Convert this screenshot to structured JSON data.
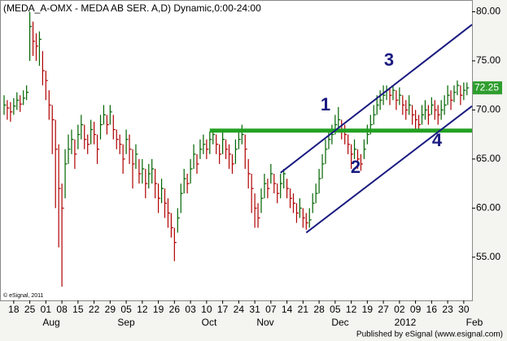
{
  "chart_data": {
    "type": "hlc",
    "title": "(MEDA_A-OMX - MEDA AB SER. A,D) Dynamic,0:00-24:00",
    "categories": [
      null,
      null,
      null,
      "18",
      null,
      null,
      null,
      null,
      "25",
      null,
      null,
      null,
      null,
      "01",
      null,
      null,
      null,
      null,
      "08",
      null,
      null,
      null,
      null,
      "15",
      null,
      null,
      null,
      null,
      "22",
      null,
      null,
      null,
      null,
      "29",
      null,
      null,
      null,
      null,
      "05",
      null,
      null,
      null,
      null,
      "12",
      null,
      null,
      null,
      null,
      "19",
      null,
      null,
      null,
      null,
      "26",
      null,
      null,
      null,
      null,
      "03",
      null,
      null,
      null,
      null,
      "10",
      null,
      null,
      null,
      null,
      "17",
      null,
      null,
      null,
      null,
      "24",
      null,
      null,
      null,
      null,
      "31",
      null,
      null,
      null,
      null,
      "07",
      null,
      null,
      null,
      null,
      "14",
      null,
      null,
      null,
      null,
      "21",
      null,
      null,
      null,
      null,
      "28",
      null,
      null,
      null,
      null,
      "05",
      null,
      null,
      null,
      null,
      "12",
      null,
      null,
      null,
      null,
      "19",
      null,
      null,
      null,
      null,
      "27",
      null,
      null,
      null,
      null,
      "02",
      null,
      null,
      null,
      null,
      "09",
      null,
      null,
      null,
      null,
      "16",
      null,
      null,
      null,
      null,
      "23",
      null,
      null,
      null,
      null,
      "30",
      null
    ],
    "months": [
      "Aug",
      "Sep",
      "Oct",
      "Nov",
      "Dec",
      "2012",
      "Feb"
    ],
    "high": [
      71.5,
      71.0,
      70.8,
      71.2,
      71.8,
      71.5,
      72.0,
      72.5,
      80.0,
      79.0,
      77.8,
      78.0,
      76.0,
      74.0,
      72.0,
      70.5,
      69.0,
      66.5,
      62.5,
      66.0,
      67.5,
      68.0,
      67.0,
      68.5,
      69.5,
      68.5,
      67.5,
      69.0,
      68.8,
      67.5,
      69.5,
      70.5,
      69.5,
      70.5,
      69.5,
      68.0,
      67.5,
      66.5,
      68.0,
      67.5,
      66.0,
      66.5,
      65.0,
      65.0,
      64.0,
      64.5,
      65.0,
      64.0,
      62.5,
      63.0,
      62.0,
      61.0,
      59.5,
      58.0,
      60.0,
      62.5,
      64.0,
      63.5,
      65.0,
      66.5,
      65.5,
      67.0,
      67.5,
      67.0,
      67.8,
      68.0,
      67.5,
      66.5,
      68.0,
      67.0,
      66.5,
      65.5,
      67.0,
      68.0,
      68.5,
      67.5,
      65.0,
      63.5,
      61.5,
      60.5,
      62.0,
      63.5,
      63.0,
      64.5,
      63.5,
      62.5,
      63.5,
      64.0,
      63.0,
      62.0,
      61.5,
      60.5,
      61.0,
      60.0,
      59.5,
      60.0,
      61.5,
      62.5,
      64.0,
      65.5,
      67.0,
      68.0,
      68.5,
      69.5,
      70.3,
      69.0,
      68.5,
      67.5,
      66.5,
      67.0,
      66.0,
      65.5,
      67.0,
      68.5,
      69.5,
      70.5,
      71.5,
      72.0,
      72.5,
      72.5,
      72.3,
      72.5,
      72.0,
      72.3,
      71.5,
      71.0,
      71.5,
      70.5,
      70.0,
      69.5,
      70.5,
      71.0,
      70.5,
      71.3,
      71.0,
      70.5,
      71.0,
      71.5,
      72.5,
      72.0,
      72.5,
      73.0,
      72.5,
      72.8,
      72.8
    ],
    "low": [
      69.5,
      69.0,
      68.8,
      69.5,
      70.0,
      69.8,
      70.5,
      71.0,
      75.0,
      75.5,
      75.0,
      74.5,
      72.5,
      71.0,
      69.0,
      65.5,
      60.0,
      56.0,
      52.0,
      61.0,
      64.5,
      65.5,
      64.0,
      66.0,
      67.0,
      66.0,
      65.5,
      66.5,
      66.5,
      64.5,
      67.0,
      68.5,
      67.5,
      68.5,
      67.0,
      66.0,
      65.5,
      63.5,
      65.5,
      64.5,
      62.0,
      64.0,
      62.5,
      62.5,
      61.0,
      62.0,
      62.5,
      61.0,
      59.5,
      60.5,
      59.0,
      58.0,
      57.0,
      54.6,
      57.5,
      59.5,
      61.5,
      61.5,
      62.5,
      64.0,
      63.5,
      65.0,
      65.5,
      65.0,
      65.5,
      66.5,
      65.5,
      64.5,
      65.5,
      65.0,
      64.0,
      63.5,
      64.5,
      66.0,
      66.5,
      64.0,
      62.0,
      59.5,
      58.0,
      58.0,
      59.5,
      61.0,
      61.0,
      62.5,
      61.5,
      60.5,
      61.0,
      62.0,
      61.0,
      60.0,
      59.5,
      58.5,
      59.0,
      58.0,
      57.8,
      58.0,
      59.5,
      60.5,
      61.5,
      63.0,
      64.5,
      66.0,
      66.5,
      67.5,
      68.0,
      67.0,
      66.5,
      65.5,
      64.0,
      65.0,
      64.0,
      63.8,
      65.0,
      66.5,
      67.5,
      68.5,
      69.5,
      70.0,
      70.5,
      71.0,
      70.5,
      71.0,
      70.0,
      70.5,
      69.5,
      69.0,
      69.5,
      68.5,
      68.0,
      67.8,
      68.5,
      69.0,
      68.5,
      69.5,
      69.0,
      68.5,
      69.0,
      69.5,
      70.5,
      70.0,
      70.8,
      71.5,
      70.5,
      71.0,
      71.5
    ],
    "close": [
      70.5,
      70.2,
      69.8,
      70.4,
      71.0,
      70.6,
      71.2,
      71.8,
      78.5,
      77.0,
      76.5,
      77.2,
      74.0,
      73.0,
      70.5,
      69.0,
      66.0,
      62.0,
      60.0,
      64.5,
      66.0,
      67.0,
      65.5,
      67.5,
      68.5,
      67.0,
      66.5,
      68.0,
      67.5,
      66.0,
      68.5,
      69.5,
      68.5,
      69.8,
      68.0,
      67.0,
      66.5,
      65.0,
      67.0,
      66.0,
      64.5,
      65.5,
      63.5,
      64.0,
      62.5,
      63.5,
      64.0,
      62.5,
      61.0,
      62.0,
      60.5,
      59.5,
      58.0,
      56.5,
      59.0,
      61.5,
      63.0,
      62.5,
      64.0,
      65.5,
      64.5,
      66.0,
      66.5,
      66.0,
      67.0,
      67.5,
      66.5,
      65.5,
      67.0,
      66.0,
      65.5,
      64.5,
      66.0,
      67.0,
      67.5,
      66.0,
      63.5,
      62.0,
      60.0,
      59.0,
      61.0,
      62.5,
      62.0,
      63.5,
      62.5,
      61.5,
      62.5,
      63.5,
      62.0,
      61.0,
      60.5,
      59.5,
      60.0,
      59.0,
      58.5,
      58.8,
      60.5,
      61.5,
      63.0,
      64.5,
      66.0,
      67.0,
      67.5,
      68.5,
      69.0,
      68.0,
      67.5,
      66.5,
      65.5,
      66.0,
      65.0,
      64.5,
      66.0,
      67.5,
      68.5,
      69.5,
      70.5,
      71.0,
      71.5,
      72.0,
      71.5,
      72.0,
      71.0,
      71.5,
      70.5,
      70.0,
      70.5,
      69.5,
      69.0,
      68.5,
      69.5,
      70.0,
      69.5,
      70.5,
      70.0,
      69.5,
      70.0,
      70.5,
      71.5,
      71.0,
      71.8,
      72.5,
      71.5,
      72.0,
      72.25
    ],
    "last_price_label": "72.25",
    "up_color": "#006400",
    "down_color": "#b00000",
    "ylim": [
      50.6,
      81.2
    ],
    "yticks": [
      {
        "value": 55,
        "label": "55.00"
      },
      {
        "value": 60,
        "label": "60.00"
      },
      {
        "value": 65,
        "label": "65.00"
      },
      {
        "value": 70,
        "label": "70.00"
      },
      {
        "value": 75,
        "label": "75.00"
      },
      {
        "value": 80,
        "label": "80.00"
      }
    ],
    "trend_lines": [
      {
        "x": [
          64,
          146
        ],
        "y": [
          67.9,
          67.9
        ],
        "color": "#22a022",
        "width": 5
      },
      {
        "x": [
          86,
          146
        ],
        "y": [
          63.6,
          78.8
        ],
        "color": "#1a1a80",
        "width": 2
      },
      {
        "x": [
          94,
          146
        ],
        "y": [
          57.5,
          70.5
        ],
        "color": "#1a1a80",
        "width": 2
      }
    ],
    "annotations": [
      "1",
      "2",
      "3",
      "4"
    ],
    "copyright": "© eSignal, 2011",
    "footer": "Published by eSignal (www.esignal.com)"
  }
}
